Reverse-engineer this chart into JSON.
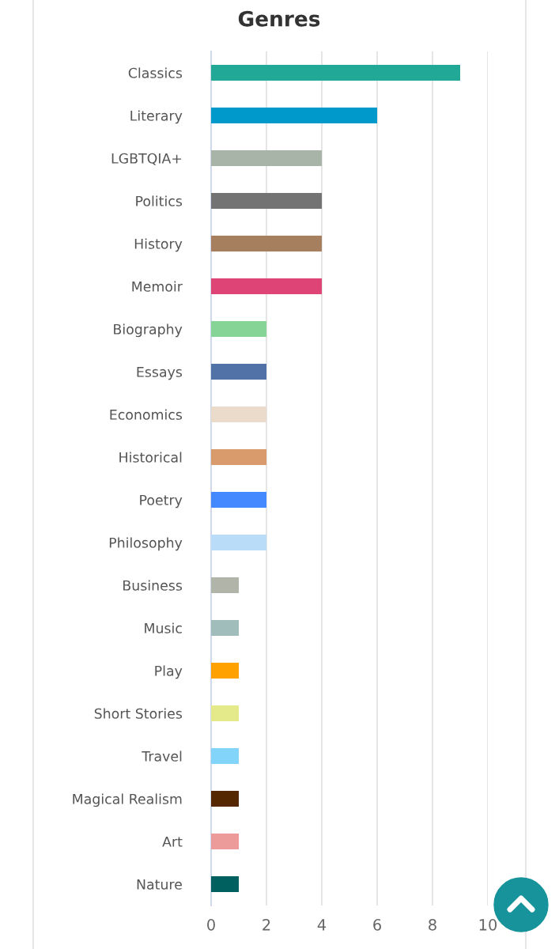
{
  "chart_data": {
    "type": "bar",
    "orientation": "horizontal",
    "title": "Genres",
    "categories": [
      "Classics",
      "Literary",
      "LGBTQIA+",
      "Politics",
      "History",
      "Memoir",
      "Biography",
      "Essays",
      "Economics",
      "Historical",
      "Poetry",
      "Philosophy",
      "Business",
      "Music",
      "Play",
      "Short Stories",
      "Travel",
      "Magical Realism",
      "Art",
      "Nature"
    ],
    "values": [
      9,
      6,
      4,
      4,
      4,
      4,
      2,
      2,
      2,
      2,
      2,
      2,
      1,
      1,
      1,
      1,
      1,
      1,
      1,
      1
    ],
    "colors": [
      "#21a896",
      "#0099cc",
      "#a7b4a7",
      "#737373",
      "#a67f5f",
      "#df4477",
      "#86d496",
      "#5072a7",
      "#eadbca",
      "#d99a6c",
      "#4489ff",
      "#b9dcf8",
      "#b0b4a9",
      "#a0bdbb",
      "#ffa100",
      "#e4e98a",
      "#83d4fa",
      "#552700",
      "#ec9a9a",
      "#005f5f"
    ],
    "xlim": [
      0,
      10
    ],
    "xticks": [
      0,
      2,
      4,
      6,
      8,
      10
    ],
    "grid": "x"
  }
}
